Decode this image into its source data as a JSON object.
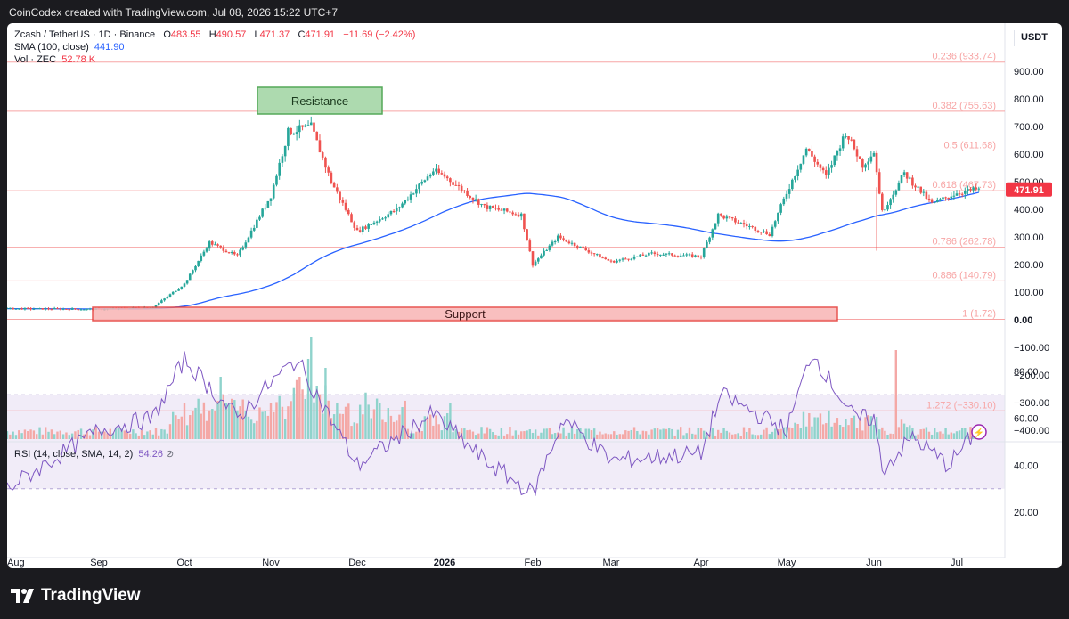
{
  "attribution": "CoinCodex created with TradingView.com, Jul 08, 2026 15:22 UTC+7",
  "legend": {
    "symbol": "Zcash / TetherUS · 1D · Binance",
    "o_label": "O",
    "o_value": "483.55",
    "h_label": "H",
    "h_value": "490.57",
    "l_label": "L",
    "l_value": "471.37",
    "c_label": "C",
    "c_value": "471.91",
    "change": "−11.69 (−2.42%)",
    "sma_label": "SMA (100, close)",
    "sma_value": "441.90",
    "vol_label": "Vol · ZEC",
    "vol_value": "52.78 K"
  },
  "currency": "USDT",
  "last_price": "471.91",
  "rsi": {
    "label": "RSI (14, close, SMA, 14, 2)",
    "value": "54.26"
  },
  "annotations": {
    "resistance": "Resistance",
    "support": "Support"
  },
  "logo_text": "TradingView",
  "colors": {
    "up": "#26a69a",
    "down": "#ef5350",
    "sma": "#2962ff",
    "fib": "#f7a5a5",
    "rsi": "#7e57c2"
  },
  "chart_data": [
    {
      "type": "candlestick",
      "x_ticks": [
        "Aug",
        "Sep",
        "Oct",
        "Nov",
        "Dec",
        "2026",
        "Feb",
        "Mar",
        "Apr",
        "May",
        "Jun",
        "Jul"
      ],
      "y_ticks": [
        "900.00",
        "800.00",
        "700.00",
        "600.00",
        "500.00",
        "400.00",
        "300.00",
        "200.00",
        "100.00",
        "0.00",
        "−100.00",
        "−200.00",
        "−300.00",
        "−400.00"
      ],
      "fib_levels": [
        {
          "ratio": "0.236",
          "price": 933.74,
          "label": "0.236 (933.74)"
        },
        {
          "ratio": "0.382",
          "price": 755.63,
          "label": "0.382 (755.63)"
        },
        {
          "ratio": "0.5",
          "price": 611.68,
          "label": "0.5 (611.68)"
        },
        {
          "ratio": "0.618",
          "price": 467.73,
          "label": "0.618 (467.73)"
        },
        {
          "ratio": "0.786",
          "price": 262.78,
          "label": "0.786 (262.78)"
        },
        {
          "ratio": "0.886",
          "price": 140.79,
          "label": "0.886 (140.79)"
        },
        {
          "ratio": "1",
          "price": 1.72,
          "label": "1 (1.72)"
        },
        {
          "ratio": "1.272",
          "price": -330.1,
          "label": "1.272 (−330.10)"
        }
      ],
      "price_keyframes": [
        {
          "date": "Aug",
          "price": 40
        },
        {
          "date": "Sep",
          "price": 38
        },
        {
          "date": "Sep 20",
          "price": 45
        },
        {
          "date": "Oct",
          "price": 130
        },
        {
          "date": "Oct 10",
          "price": 280
        },
        {
          "date": "Oct 20",
          "price": 230
        },
        {
          "date": "Nov",
          "price": 450
        },
        {
          "date": "Nov 7",
          "price": 680
        },
        {
          "date": "Nov 15",
          "price": 700
        },
        {
          "date": "Nov 22",
          "price": 500
        },
        {
          "date": "Dec",
          "price": 320
        },
        {
          "date": "Dec 15",
          "price": 400
        },
        {
          "date": "Dec 28",
          "price": 540
        },
        {
          "date": "2026",
          "price": 520
        },
        {
          "date": "Jan 15",
          "price": 410
        },
        {
          "date": "Jan 28",
          "price": 380
        },
        {
          "date": "Feb",
          "price": 200
        },
        {
          "date": "Feb 10",
          "price": 300
        },
        {
          "date": "Mar",
          "price": 210
        },
        {
          "date": "Mar 15",
          "price": 240
        },
        {
          "date": "Apr",
          "price": 230
        },
        {
          "date": "Apr 7",
          "price": 380
        },
        {
          "date": "Apr 25",
          "price": 310
        },
        {
          "date": "May",
          "price": 460
        },
        {
          "date": "May 8",
          "price": 620
        },
        {
          "date": "May 15",
          "price": 520
        },
        {
          "date": "May 22",
          "price": 680
        },
        {
          "date": "May 28",
          "price": 560
        },
        {
          "date": "Jun",
          "price": 610
        },
        {
          "date": "Jun 4",
          "price": 390
        },
        {
          "date": "Jun 12",
          "price": 530
        },
        {
          "date": "Jun 22",
          "price": 420
        },
        {
          "date": "Jul",
          "price": 460
        },
        {
          "date": "Jul 8",
          "price": 471.91
        }
      ],
      "sma_100": {
        "last": 441.9
      },
      "rsi_scale": [
        "80.00",
        "60.00",
        "40.00",
        "20.00"
      ],
      "rsi_band": [
        30,
        70
      ],
      "rsi_keyframes": [
        {
          "date": "Aug",
          "value": 30
        },
        {
          "date": "Sep",
          "value": 55
        },
        {
          "date": "Sep 20",
          "value": 60
        },
        {
          "date": "Oct",
          "value": 85
        },
        {
          "date": "Oct 20",
          "value": 60
        },
        {
          "date": "Nov",
          "value": 75
        },
        {
          "date": "Nov 10",
          "value": 85
        },
        {
          "date": "Dec",
          "value": 40
        },
        {
          "date": "Dec 28",
          "value": 62
        },
        {
          "date": "Jan 15",
          "value": 42
        },
        {
          "date": "Feb",
          "value": 28
        },
        {
          "date": "Feb 12",
          "value": 60
        },
        {
          "date": "Mar",
          "value": 42
        },
        {
          "date": "Apr",
          "value": 45
        },
        {
          "date": "Apr 8",
          "value": 70
        },
        {
          "date": "May",
          "value": 55
        },
        {
          "date": "May 10",
          "value": 88
        },
        {
          "date": "May 25",
          "value": 60
        },
        {
          "date": "Jun",
          "value": 60
        },
        {
          "date": "Jun 4",
          "value": 38
        },
        {
          "date": "Jun 15",
          "value": 52
        },
        {
          "date": "Jun 28",
          "value": 40
        },
        {
          "date": "Jul 8",
          "value": 54.26
        }
      ]
    }
  ]
}
